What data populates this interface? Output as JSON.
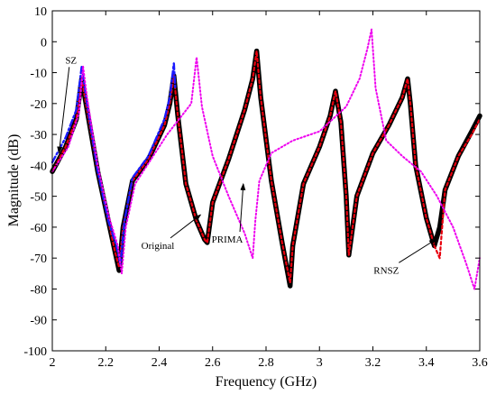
{
  "chart_data": {
    "type": "line",
    "xlabel": "Frequency (GHz)",
    "ylabel": "Magnitude (dB)",
    "xlim": [
      2,
      3.6
    ],
    "ylim": [
      -100,
      10
    ],
    "grid": false,
    "x_ticks": [
      "2",
      "2.2",
      "2.4",
      "2.6",
      "2.8",
      "3",
      "3.2",
      "3.4",
      "3.6"
    ],
    "y_ticks": [
      "10",
      "0",
      "-10",
      "-20",
      "-30",
      "-40",
      "-50",
      "-60",
      "-70",
      "-80",
      "-90",
      "-100"
    ],
    "series": [
      {
        "name": "Original",
        "color": "#000000",
        "style": "solid-thick",
        "x": [
          2.0,
          2.05,
          2.09,
          2.11,
          2.13,
          2.17,
          2.21,
          2.235,
          2.25,
          2.265,
          2.3,
          2.36,
          2.42,
          2.44,
          2.455,
          2.47,
          2.5,
          2.54,
          2.57,
          2.58,
          2.6,
          2.66,
          2.72,
          2.75,
          2.765,
          2.78,
          2.82,
          2.86,
          2.89,
          2.9,
          2.94,
          3.0,
          3.04,
          3.06,
          3.08,
          3.1,
          3.11,
          3.14,
          3.2,
          3.26,
          3.31,
          3.33,
          3.34,
          3.36,
          3.4,
          3.43,
          3.45,
          3.47,
          3.52,
          3.57,
          3.6
        ],
        "y": [
          -42,
          -34,
          -25,
          -12,
          -22,
          -42,
          -58,
          -68,
          -74,
          -60,
          -45,
          -38,
          -27,
          -20,
          -11,
          -24,
          -46,
          -58,
          -64,
          -65,
          -52,
          -38,
          -22,
          -12,
          -3,
          -18,
          -45,
          -65,
          -79,
          -66,
          -46,
          -34,
          -24,
          -16,
          -26,
          -50,
          -69,
          -50,
          -36,
          -27,
          -18,
          -12,
          -20,
          -40,
          -57,
          -66,
          -60,
          -48,
          -37,
          -29,
          -24
        ]
      },
      {
        "name": "RNSZ",
        "color": "#e8000e",
        "style": "dashed",
        "x": [
          2.0,
          2.05,
          2.09,
          2.11,
          2.13,
          2.17,
          2.21,
          2.235,
          2.25,
          2.265,
          2.3,
          2.36,
          2.42,
          2.44,
          2.455,
          2.47,
          2.5,
          2.54,
          2.57,
          2.58,
          2.6,
          2.66,
          2.72,
          2.75,
          2.765,
          2.78,
          2.82,
          2.86,
          2.89,
          2.9,
          2.94,
          3.0,
          3.04,
          3.06,
          3.08,
          3.1,
          3.11,
          3.14,
          3.2,
          3.26,
          3.31,
          3.33,
          3.34,
          3.36,
          3.4,
          3.43,
          3.45,
          3.47,
          3.52,
          3.57,
          3.6
        ],
        "y": [
          -42,
          -34,
          -25,
          -12,
          -22,
          -42,
          -58,
          -68,
          -73,
          -60,
          -45,
          -38,
          -27,
          -20,
          -11,
          -24,
          -46,
          -58,
          -64,
          -65,
          -52,
          -38,
          -22,
          -12,
          -3,
          -18,
          -45,
          -65,
          -78,
          -66,
          -46,
          -34,
          -24,
          -16,
          -26,
          -50,
          -69,
          -50,
          -36,
          -27,
          -18,
          -12,
          -20,
          -40,
          -57,
          -66,
          -70,
          -48,
          -37,
          -30,
          -25
        ]
      },
      {
        "name": "SZ",
        "color": "#1a1aff",
        "style": "dash-dot",
        "x": [
          2.0,
          2.05,
          2.09,
          2.11,
          2.13,
          2.17,
          2.21,
          2.24,
          2.255,
          2.27,
          2.3,
          2.36,
          2.42,
          2.44,
          2.455,
          2.46
        ],
        "y": [
          -39,
          -31,
          -22,
          -8,
          -20,
          -42,
          -58,
          -66,
          -72,
          -58,
          -44,
          -37,
          -25,
          -18,
          -7,
          -15
        ]
      },
      {
        "name": "PRIMA",
        "color": "#ee00ee",
        "style": "dotted",
        "x": [
          2.0,
          2.06,
          2.1,
          2.115,
          2.13,
          2.17,
          2.21,
          2.245,
          2.26,
          2.275,
          2.31,
          2.37,
          2.43,
          2.52,
          2.54,
          2.56,
          2.6,
          2.66,
          2.72,
          2.75,
          2.76,
          2.775,
          2.82,
          2.9,
          3.0,
          3.1,
          3.15,
          3.18,
          3.195,
          3.21,
          3.25,
          3.31,
          3.38,
          3.44,
          3.5,
          3.55,
          3.58,
          3.6
        ],
        "y": [
          -42,
          -34,
          -23,
          -8,
          -18,
          -40,
          -56,
          -66,
          -75,
          -60,
          -46,
          -38,
          -30,
          -20,
          -5,
          -21,
          -37,
          -50,
          -62,
          -70,
          -58,
          -45,
          -36,
          -32,
          -29,
          -21,
          -12,
          -2,
          4,
          -15,
          -32,
          -37,
          -42,
          -50,
          -60,
          -72,
          -80,
          -70
        ]
      }
    ],
    "annotations": [
      {
        "text": "SZ",
        "x": 2.07,
        "y": -7,
        "arrow_to": [
          2.025,
          -36
        ]
      },
      {
        "text": "Original",
        "x": 2.395,
        "y": -67,
        "arrow_to": [
          2.555,
          -56
        ]
      },
      {
        "text": "PRIMA",
        "x": 2.655,
        "y": -65,
        "arrow_to": [
          2.715,
          -46
        ]
      },
      {
        "text": "RNSZ",
        "x": 3.25,
        "y": -75,
        "arrow_to": [
          3.435,
          -64
        ]
      }
    ]
  }
}
